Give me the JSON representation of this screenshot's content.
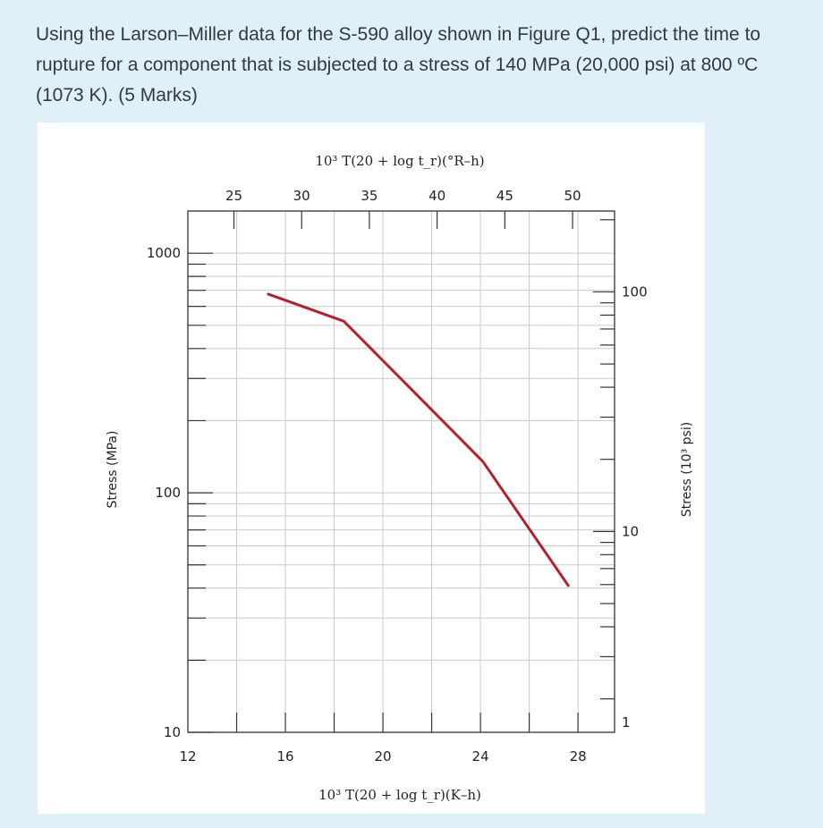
{
  "question": {
    "text": "Using the Larson–Miller data for the S-590 alloy shown in Figure Q1, predict the time to rupture for a component that is subjected to a stress of 140 MPa (20,000 psi) at 800 ºC (1073 K). (5 Marks)"
  },
  "chart_data": {
    "type": "line",
    "title": "",
    "top_axis_label": "10³ T(20 + log t_r)(°R–h)",
    "xlabel": "10³ T(20 + log t_r)(K–h)",
    "ylabel": "Stress (MPa)",
    "right_ylabel": "Stress (10³ psi)",
    "x_scale": "linear",
    "y_scale": "log",
    "xlim": [
      12,
      29.5
    ],
    "ylim": [
      10,
      1500
    ],
    "x_ticks": [
      12,
      16,
      20,
      24,
      28
    ],
    "y_ticks": [
      10,
      100,
      1000
    ],
    "top_ticks": [
      25,
      30,
      35,
      40,
      45,
      50
    ],
    "right_ticks": [
      1,
      10,
      100
    ],
    "grid": true,
    "series": [
      {
        "name": "",
        "color": "#b5202a",
        "x": [
          15.3,
          18.4,
          24.1,
          27.6
        ],
        "y": [
          675,
          520,
          135,
          41
        ]
      }
    ]
  }
}
